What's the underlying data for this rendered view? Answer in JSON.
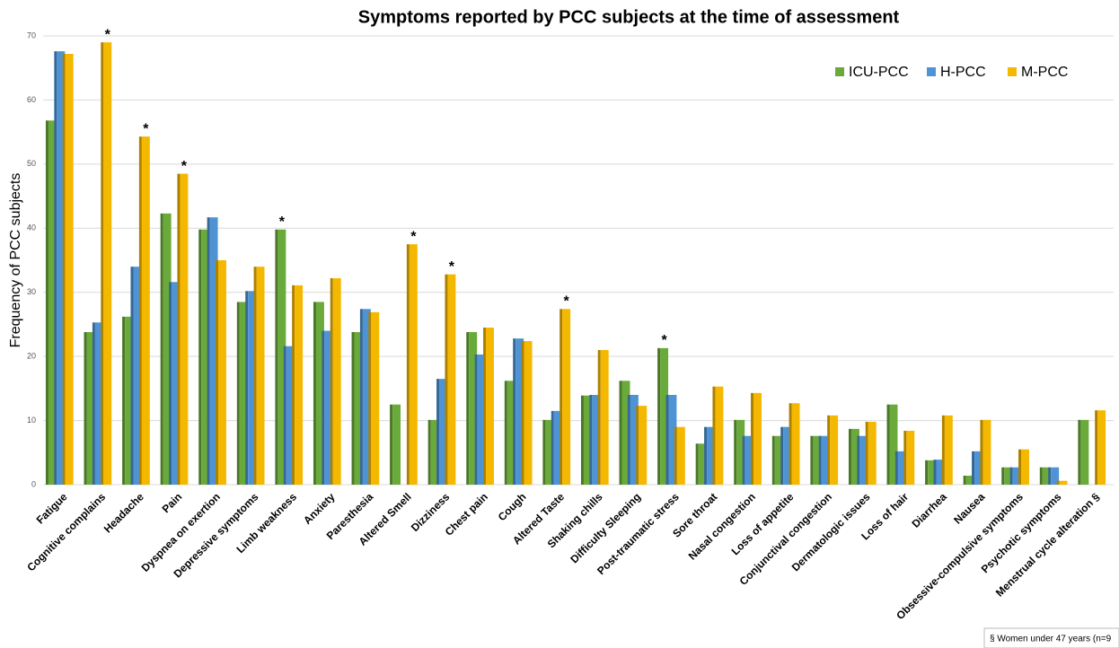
{
  "chart_data": {
    "type": "bar",
    "title": "Symptoms reported by PCC subjects at the time of assessment",
    "y_label": "Frequency of PCC subjects",
    "footnote": "§ Women under 47 years (n=9",
    "categories": [
      "Fatigue",
      "Cognitive complains",
      "Headache",
      "Pain",
      "Dyspnea on exertion",
      "Depressive symptoms",
      "Limb weakness",
      "Anxiety",
      "Paresthesia",
      "Altered Smell",
      "Dizziness",
      "Chest pain",
      "Cough",
      "Altered Taste",
      "Shaking chills",
      "Difficulty Sleeping",
      "Post-traumatic stress",
      "Sore throat",
      "Nasal congestion",
      "Loss of appetite",
      "Conjunctival congestion",
      "Dermatologic issues",
      "Loss of hair",
      "Diarrhea",
      "Nausea",
      "Obsessive-compulsive symptoms",
      "Psychotic symptoms",
      "Menstrual cycle alteration §"
    ],
    "series": [
      {
        "name": "ICU-PCC",
        "color": "#6aaa3a",
        "values": [
          56.8,
          23.8,
          26.2,
          42.3,
          39.8,
          28.5,
          39.8,
          28.5,
          23.8,
          12.5,
          10.1,
          23.8,
          16.2,
          10.1,
          13.9,
          16.2,
          21.3,
          6.4,
          10.1,
          7.6,
          7.6,
          8.7,
          12.5,
          3.8,
          1.4,
          2.7,
          2.7,
          10.1
        ]
      },
      {
        "name": "H-PCC",
        "color": "#4e94d4",
        "values": [
          67.6,
          25.3,
          34,
          31.6,
          41.7,
          30.2,
          21.6,
          24,
          27.4,
          0,
          16.5,
          20.3,
          22.8,
          11.5,
          14,
          14,
          14,
          9,
          7.6,
          9,
          7.6,
          7.6,
          5.2,
          3.9,
          5.2,
          2.7,
          2.7,
          0
        ]
      },
      {
        "name": "M-PCC",
        "color": "#f5b800",
        "values": [
          67.2,
          69,
          54.3,
          48.5,
          35,
          34,
          31.1,
          32.2,
          26.9,
          37.5,
          32.8,
          24.5,
          22.4,
          27.4,
          21,
          12.3,
          9,
          15.3,
          14.3,
          12.7,
          10.8,
          9.8,
          8.4,
          10.8,
          10.1,
          5.5,
          0.6,
          11.6
        ]
      }
    ],
    "annotations": [
      {
        "category": "Cognitive complains",
        "series": "M-PCC",
        "text": "*"
      },
      {
        "category": "Headache",
        "series": "M-PCC",
        "text": "*"
      },
      {
        "category": "Pain",
        "series": "M-PCC",
        "text": "*"
      },
      {
        "category": "Limb weakness",
        "series": "ICU-PCC",
        "text": "*"
      },
      {
        "category": "Altered Smell",
        "series": "M-PCC",
        "text": "*"
      },
      {
        "category": "Dizziness",
        "series": "M-PCC",
        "text": "*"
      },
      {
        "category": "Altered Taste",
        "series": "M-PCC",
        "text": "*"
      },
      {
        "category": "Post-traumatic stress",
        "series": "ICU-PCC",
        "text": "*"
      }
    ],
    "ylim": [
      0,
      70
    ],
    "yticks": [
      0,
      10,
      20,
      30,
      40,
      50,
      60,
      70
    ],
    "grid": true,
    "legend": "top-right"
  }
}
